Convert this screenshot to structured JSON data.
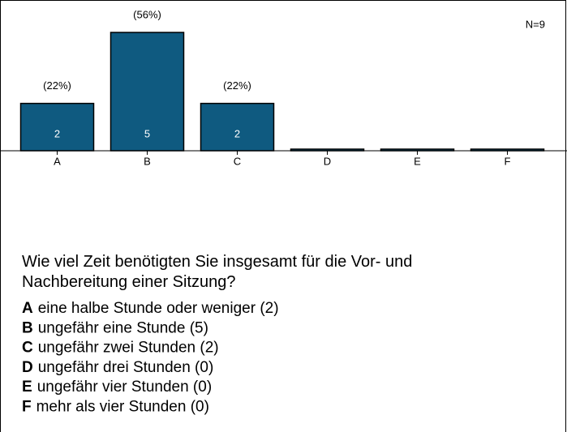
{
  "chart_data": {
    "type": "bar",
    "annotation": "N=9",
    "categories": [
      "A",
      "B",
      "C",
      "D",
      "E",
      "F"
    ],
    "values": [
      2,
      5,
      2,
      0,
      0,
      0
    ],
    "percent_labels": [
      "(22%)",
      "(56%)",
      "(22%)",
      null,
      null,
      null
    ],
    "color": "#0f5a80",
    "ylim": [
      0,
      5
    ]
  },
  "question": {
    "lines": [
      "Wie viel Zeit benötigten Sie insgesamt für die Vor- und",
      "Nachbereitung einer Sitzung?"
    ],
    "options": [
      {
        "letter": "A",
        "text": "eine halbe Stunde oder weniger (2)"
      },
      {
        "letter": "B",
        "text": "ungefähr eine Stunde (5)"
      },
      {
        "letter": "C",
        "text": "ungefähr zwei Stunden (2)"
      },
      {
        "letter": "D",
        "text": "ungefähr drei Stunden (0)"
      },
      {
        "letter": "E",
        "text": "ungefähr vier Stunden (0)"
      },
      {
        "letter": "F",
        "text": "mehr als vier Stunden (0)"
      }
    ]
  }
}
